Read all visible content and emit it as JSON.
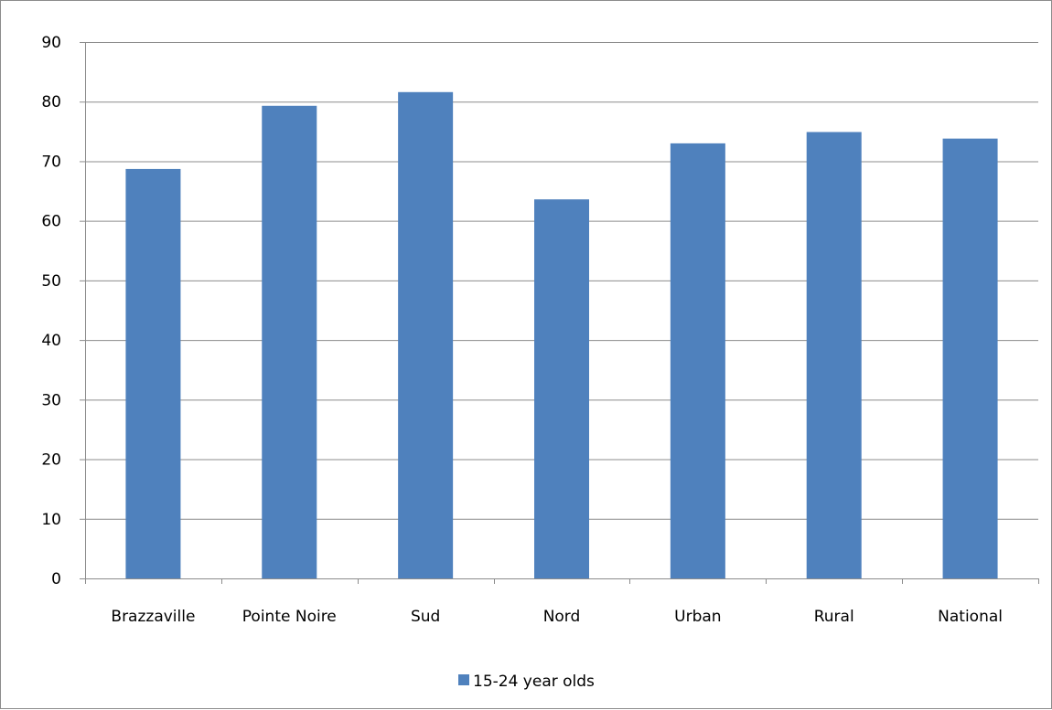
{
  "chart_data": {
    "type": "bar",
    "categories": [
      "Brazzaville",
      "Pointe Noire",
      "Sud",
      "Nord",
      "Urban",
      "Rural",
      "National"
    ],
    "series": [
      {
        "name": "15-24 year olds",
        "values": [
          68.7,
          79.3,
          81.6,
          63.6,
          73.0,
          74.9,
          73.8
        ],
        "color": "#4f81bd"
      }
    ],
    "xlabel": "",
    "ylabel": "",
    "ylim": [
      0,
      90
    ],
    "yticks": [
      "0",
      "10",
      "20",
      "30",
      "40",
      "50",
      "60",
      "70",
      "80",
      "90"
    ],
    "grid": true,
    "gridline_color": "#8c8c8c",
    "legend_position": "bottom"
  }
}
